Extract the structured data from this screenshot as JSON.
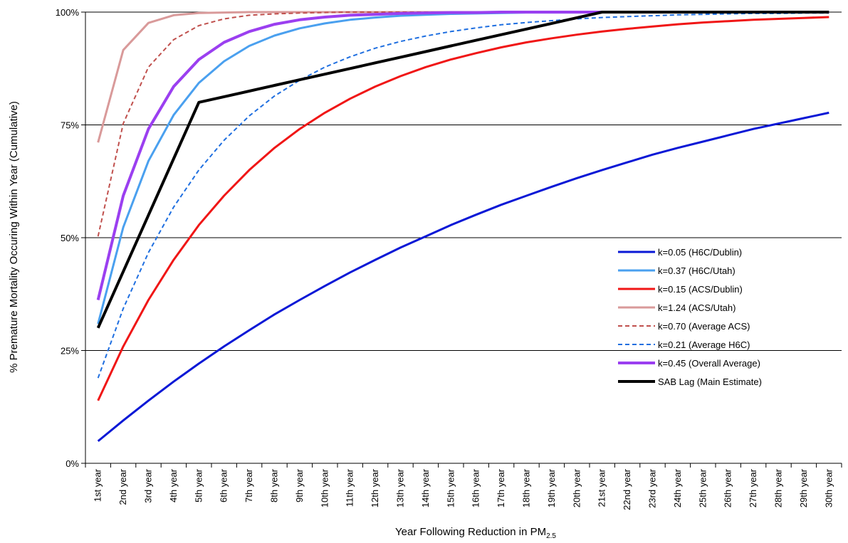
{
  "chart_data": {
    "type": "line",
    "xlabel": "Year Following Reduction in PM",
    "xlabel_sub": "2.5",
    "ylabel": "% Premature Mortality Occuring Within Year (Cumulative)",
    "ylim": [
      0,
      100
    ],
    "yticks": [
      "0%",
      "25%",
      "50%",
      "75%",
      "100%"
    ],
    "ytick_values": [
      0,
      25,
      50,
      75,
      100
    ],
    "grid": "horizontal",
    "legend_position": "lower-right",
    "categories": [
      "1st year",
      "2nd year",
      "3rd year",
      "4th year",
      "5th year",
      "6th year",
      "7th year",
      "8th year",
      "9th year",
      "10th year",
      "11th year",
      "12th year",
      "13th year",
      "14th year",
      "15th year",
      "16th year",
      "17th year",
      "18th year",
      "19th year",
      "20th year",
      "21st year",
      "22nd year",
      "23rd year",
      "24th year",
      "25th year",
      "26th year",
      "27th year",
      "28th year",
      "29th year",
      "30th year"
    ],
    "series": [
      {
        "name": "k=0.05 (H6C/Dublin)",
        "color": "#0a18d6",
        "dash": false,
        "width": 3,
        "values": [
          4.9,
          9.5,
          13.9,
          18.1,
          22.1,
          25.9,
          29.5,
          33.0,
          36.2,
          39.3,
          42.3,
          45.1,
          47.8,
          50.3,
          52.8,
          55.1,
          57.3,
          59.3,
          61.3,
          63.2,
          65.0,
          66.7,
          68.4,
          69.9,
          71.3,
          72.7,
          74.1,
          75.3,
          76.5,
          77.7
        ]
      },
      {
        "name": "k=0.37 (H6C/Utah)",
        "color": "#4aa0ef",
        "dash": false,
        "width": 3,
        "values": [
          30.9,
          52.3,
          67.0,
          77.2,
          84.3,
          89.1,
          92.5,
          94.8,
          96.4,
          97.5,
          98.3,
          98.8,
          99.2,
          99.4,
          99.6,
          99.7,
          99.8,
          99.9,
          99.9,
          99.9,
          100,
          100,
          100,
          100,
          100,
          100,
          100,
          100,
          100,
          100
        ]
      },
      {
        "name": "k=0.15 (ACS/Dublin)",
        "color": "#f01616",
        "dash": false,
        "width": 3,
        "values": [
          13.9,
          25.9,
          36.2,
          45.1,
          52.8,
          59.3,
          65.0,
          69.9,
          74.1,
          77.7,
          80.8,
          83.5,
          85.8,
          87.8,
          89.5,
          90.9,
          92.2,
          93.3,
          94.2,
          95.0,
          95.7,
          96.3,
          96.8,
          97.3,
          97.7,
          98.0,
          98.3,
          98.5,
          98.7,
          98.9
        ]
      },
      {
        "name": "k=1.24 (ACS/Utah)",
        "color": "#d99a9a",
        "dash": false,
        "width": 3,
        "values": [
          71.1,
          91.6,
          97.6,
          99.3,
          99.8,
          99.9,
          100,
          100,
          100,
          100,
          100,
          100,
          100,
          100,
          100,
          100,
          100,
          100,
          100,
          100,
          100,
          100,
          100,
          100,
          100,
          100,
          100,
          100,
          100,
          100
        ]
      },
      {
        "name": "k=0.70 (Average ACS)",
        "color": "#c0504d",
        "dash": true,
        "width": 2,
        "values": [
          50.3,
          75.3,
          87.8,
          93.9,
          97.0,
          98.5,
          99.3,
          99.6,
          99.8,
          99.9,
          100,
          100,
          100,
          100,
          100,
          100,
          100,
          100,
          100,
          100,
          100,
          100,
          100,
          100,
          100,
          100,
          100,
          100,
          100,
          100
        ]
      },
      {
        "name": "k=0.21 (Average H6C)",
        "color": "#1f6fe0",
        "dash": true,
        "width": 2,
        "values": [
          18.9,
          34.3,
          46.7,
          56.8,
          65.0,
          71.6,
          77.0,
          81.4,
          84.9,
          87.8,
          90.1,
          92.0,
          93.5,
          94.7,
          95.7,
          96.5,
          97.2,
          97.7,
          98.1,
          98.5,
          98.8,
          99.0,
          99.2,
          99.4,
          99.5,
          99.6,
          99.7,
          99.7,
          99.8,
          99.8
        ]
      },
      {
        "name": "k=0.45 (Overall Average)",
        "color": "#9b3ff0",
        "dash": false,
        "width": 4,
        "values": [
          36.2,
          59.3,
          74.1,
          83.5,
          89.5,
          93.3,
          95.7,
          97.3,
          98.3,
          98.9,
          99.3,
          99.5,
          99.7,
          99.8,
          99.9,
          99.9,
          100,
          100,
          100,
          100,
          100,
          100,
          100,
          100,
          100,
          100,
          100,
          100,
          100,
          100
        ]
      },
      {
        "name": "SAB Lag (Main Estimate)",
        "color": "#000000",
        "dash": false,
        "width": 4,
        "values": [
          30,
          42.5,
          55,
          67.5,
          80,
          81.25,
          82.5,
          83.75,
          85,
          86.25,
          87.5,
          88.75,
          90,
          91.25,
          92.5,
          93.75,
          95,
          96.25,
          97.5,
          98.75,
          100,
          100,
          100,
          100,
          100,
          100,
          100,
          100,
          100,
          100
        ]
      }
    ]
  }
}
